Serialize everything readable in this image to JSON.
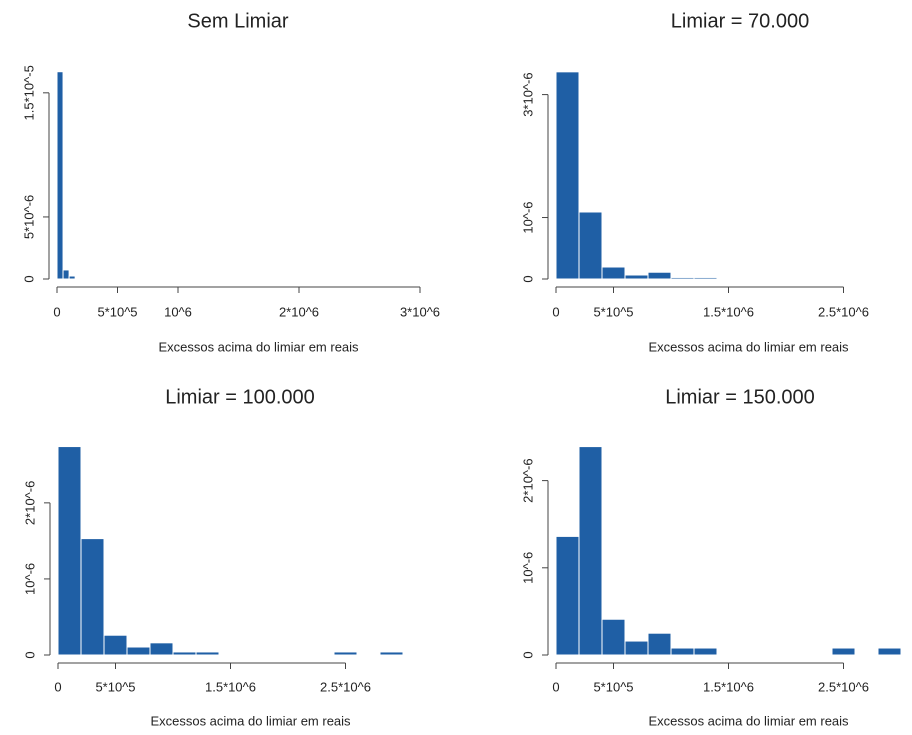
{
  "chart_data": [
    {
      "type": "histogram",
      "title": "Sem Limiar",
      "x_label": "Excessos acima do limiar em reais",
      "color": "#1f5fa5",
      "bins": [
        0,
        50000,
        100000,
        150000
      ],
      "values": [
        1.67e-05,
        7.3e-07,
        2.4e-07
      ],
      "xlim": [
        0,
        3000000
      ],
      "ylim": [
        0,
        1.7e-05
      ],
      "xticks": [
        0,
        {
          "value": 500000,
          "label": "5*10^5"
        },
        {
          "value": 1000000,
          "label": "10^6"
        },
        {
          "value": 2000000,
          "label": "2*10^6"
        },
        {
          "value": 3000000,
          "label": "3*10^6"
        }
      ],
      "yticks": [
        0,
        {
          "value": 5e-06,
          "label": "5*10^-6"
        },
        {
          "value": 1.5e-05,
          "label": "1.5*10^-5"
        }
      ]
    },
    {
      "type": "histogram",
      "title": "Limiar = 70.000",
      "x_label": "Excessos acima do limiar em reais",
      "color": "#1f5fa5",
      "bins": [
        0,
        200000,
        400000,
        600000,
        800000,
        1000000,
        1200000,
        1400000,
        1600000,
        1800000,
        2000000,
        2200000,
        2400000,
        2600000,
        2800000,
        3000000
      ],
      "values": [
        3.37e-06,
        1.09e-06,
        1.95e-07,
        6.5e-08,
        1.1e-07,
        2.5e-08,
        2.5e-08,
        0,
        0,
        0,
        0,
        0,
        1.5e-08,
        0,
        1.5e-08
      ],
      "xlim": [
        0,
        3000000
      ],
      "ylim": [
        0,
        3.4e-06
      ],
      "xticks": [
        0,
        {
          "value": 500000,
          "label": "5*10^5"
        },
        {
          "value": 1500000,
          "label": "1.5*10^6"
        },
        {
          "value": 2500000,
          "label": "2.5*10^6"
        }
      ],
      "yticks": [
        0,
        {
          "value": 1e-06,
          "label": "10^-6"
        },
        {
          "value": 3e-06,
          "label": "3*10^-6"
        }
      ]
    },
    {
      "type": "histogram",
      "title": "Limiar = 100.000",
      "x_label": "Excessos acima do limiar em reais",
      "color": "#1f5fa5",
      "bins": [
        0,
        200000,
        400000,
        600000,
        800000,
        1000000,
        1200000,
        1400000,
        1600000,
        1800000,
        2000000,
        2200000,
        2400000,
        2600000,
        2800000,
        3000000
      ],
      "values": [
        2.74e-06,
        1.53e-06,
        2.6e-07,
        1.05e-07,
        1.6e-07,
        4e-08,
        4e-08,
        0,
        0,
        0,
        0,
        0,
        4e-08,
        0,
        4e-08
      ],
      "xlim": [
        0,
        3000000
      ],
      "ylim": [
        0,
        2.8e-06
      ],
      "xticks": [
        0,
        {
          "value": 500000,
          "label": "5*10^5"
        },
        {
          "value": 1500000,
          "label": "1.5*10^6"
        },
        {
          "value": 2500000,
          "label": "2.5*10^6"
        }
      ],
      "yticks": [
        0,
        {
          "value": 1e-06,
          "label": "10^-6"
        },
        {
          "value": 2e-06,
          "label": "2*10^-6"
        }
      ]
    },
    {
      "type": "histogram",
      "title": "Limiar = 150.000",
      "x_label": "Excessos acima do limiar em reais",
      "color": "#1f5fa5",
      "bins": [
        0,
        200000,
        400000,
        600000,
        800000,
        1000000,
        1200000,
        1400000,
        1600000,
        1800000,
        2000000,
        2200000,
        2400000,
        2600000,
        2800000,
        3000000
      ],
      "values": [
        1.36e-06,
        2.39e-06,
        4.1e-07,
        1.6e-07,
        2.5e-07,
        8e-08,
        8e-08,
        0,
        0,
        0,
        0,
        0,
        8e-08,
        0,
        8e-08
      ],
      "xlim": [
        0,
        3000000
      ],
      "ylim": [
        0,
        2.5e-06
      ],
      "xticks": [
        0,
        {
          "value": 500000,
          "label": "5*10^5"
        },
        {
          "value": 1500000,
          "label": "1.5*10^6"
        },
        {
          "value": 2500000,
          "label": "2.5*10^6"
        }
      ],
      "yticks": [
        0,
        {
          "value": 1e-06,
          "label": "10^-6"
        },
        {
          "value": 2e-06,
          "label": "2*10^-6"
        }
      ]
    }
  ]
}
